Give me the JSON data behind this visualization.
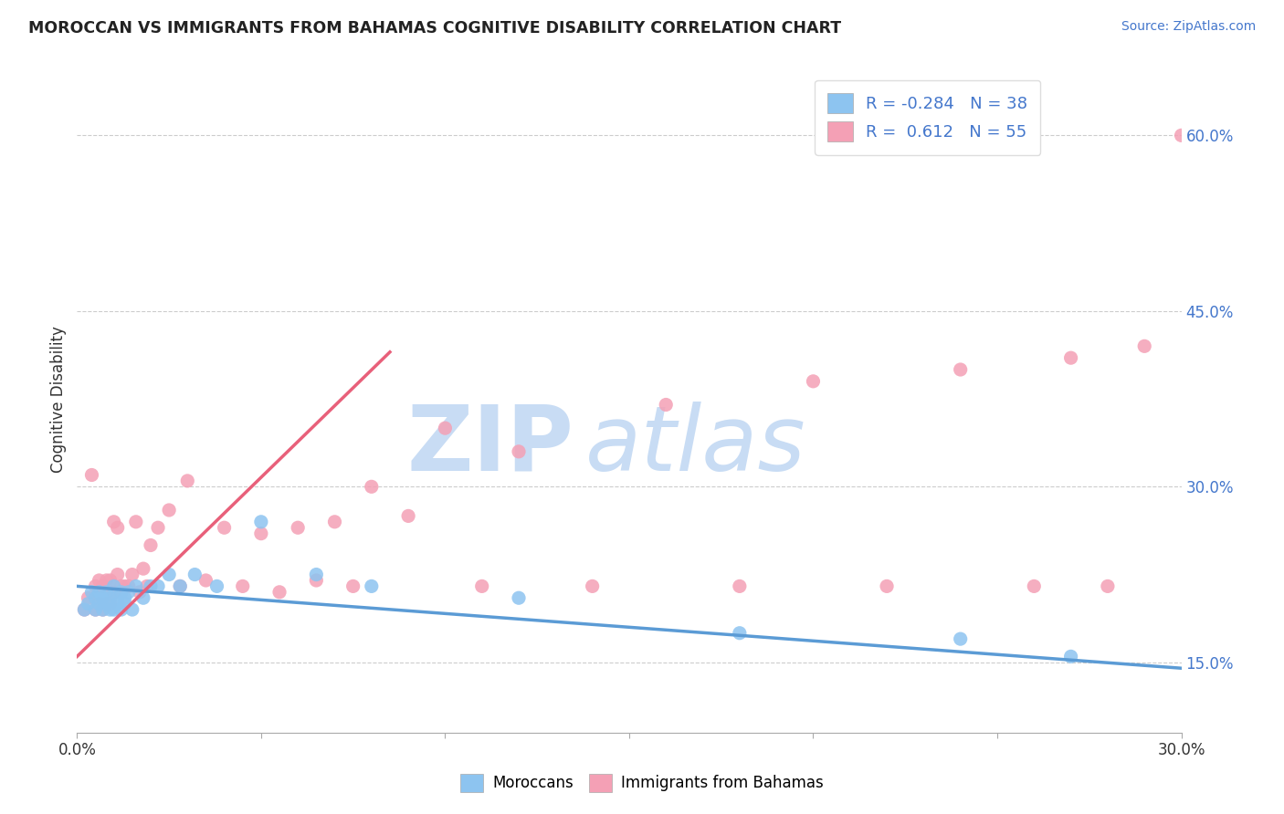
{
  "title": "MOROCCAN VS IMMIGRANTS FROM BAHAMAS COGNITIVE DISABILITY CORRELATION CHART",
  "source": "Source: ZipAtlas.com",
  "ylabel": "Cognitive Disability",
  "legend_label1": "Moroccans",
  "legend_label2": "Immigrants from Bahamas",
  "R1": -0.284,
  "N1": 38,
  "R2": 0.612,
  "N2": 55,
  "xlim": [
    0.0,
    0.3
  ],
  "ylim": [
    0.09,
    0.66
  ],
  "ytick_vals": [
    0.15,
    0.3,
    0.45,
    0.6
  ],
  "ytick_labels": [
    "15.0%",
    "30.0%",
    "45.0%",
    "60.0%"
  ],
  "xtick_vals": [
    0.0,
    0.05,
    0.1,
    0.15,
    0.2,
    0.25,
    0.3
  ],
  "xtick_labels": [
    "0.0%",
    "",
    "",
    "",
    "",
    "",
    "30.0%"
  ],
  "color_blue": "#8DC4F0",
  "color_pink": "#F4A0B5",
  "line_blue": "#5B9BD5",
  "line_pink": "#E8607A",
  "watermark_zip": "ZIP",
  "watermark_atlas": "atlas",
  "watermark_color": "#C8DCF4",
  "blue_scatter_x": [
    0.002,
    0.003,
    0.004,
    0.005,
    0.005,
    0.006,
    0.006,
    0.007,
    0.007,
    0.008,
    0.008,
    0.009,
    0.009,
    0.01,
    0.01,
    0.011,
    0.011,
    0.012,
    0.012,
    0.013,
    0.013,
    0.014,
    0.015,
    0.016,
    0.018,
    0.02,
    0.022,
    0.025,
    0.028,
    0.032,
    0.038,
    0.05,
    0.065,
    0.08,
    0.12,
    0.18,
    0.24,
    0.27
  ],
  "blue_scatter_y": [
    0.195,
    0.2,
    0.21,
    0.195,
    0.205,
    0.2,
    0.21,
    0.195,
    0.205,
    0.2,
    0.21,
    0.195,
    0.205,
    0.195,
    0.215,
    0.2,
    0.205,
    0.195,
    0.21,
    0.2,
    0.205,
    0.21,
    0.195,
    0.215,
    0.205,
    0.215,
    0.215,
    0.225,
    0.215,
    0.225,
    0.215,
    0.27,
    0.225,
    0.215,
    0.205,
    0.175,
    0.17,
    0.155
  ],
  "pink_scatter_x": [
    0.002,
    0.003,
    0.004,
    0.005,
    0.005,
    0.006,
    0.006,
    0.007,
    0.007,
    0.008,
    0.008,
    0.009,
    0.009,
    0.01,
    0.01,
    0.011,
    0.011,
    0.012,
    0.013,
    0.014,
    0.015,
    0.016,
    0.017,
    0.018,
    0.019,
    0.02,
    0.022,
    0.025,
    0.028,
    0.03,
    0.035,
    0.04,
    0.045,
    0.05,
    0.055,
    0.06,
    0.065,
    0.07,
    0.075,
    0.08,
    0.09,
    0.1,
    0.11,
    0.12,
    0.14,
    0.16,
    0.18,
    0.2,
    0.22,
    0.24,
    0.26,
    0.27,
    0.28,
    0.29,
    0.3
  ],
  "pink_scatter_y": [
    0.195,
    0.205,
    0.31,
    0.195,
    0.215,
    0.2,
    0.22,
    0.195,
    0.215,
    0.2,
    0.22,
    0.2,
    0.22,
    0.21,
    0.27,
    0.225,
    0.265,
    0.215,
    0.215,
    0.215,
    0.225,
    0.27,
    0.21,
    0.23,
    0.215,
    0.25,
    0.265,
    0.28,
    0.215,
    0.305,
    0.22,
    0.265,
    0.215,
    0.26,
    0.21,
    0.265,
    0.22,
    0.27,
    0.215,
    0.3,
    0.275,
    0.35,
    0.215,
    0.33,
    0.215,
    0.37,
    0.215,
    0.39,
    0.215,
    0.4,
    0.215,
    0.41,
    0.215,
    0.42,
    0.6
  ],
  "blue_trendline_x": [
    0.0,
    0.3
  ],
  "blue_trendline_y": [
    0.215,
    0.145
  ],
  "pink_trendline_x": [
    0.0,
    0.085
  ],
  "pink_trendline_y": [
    0.155,
    0.415
  ]
}
